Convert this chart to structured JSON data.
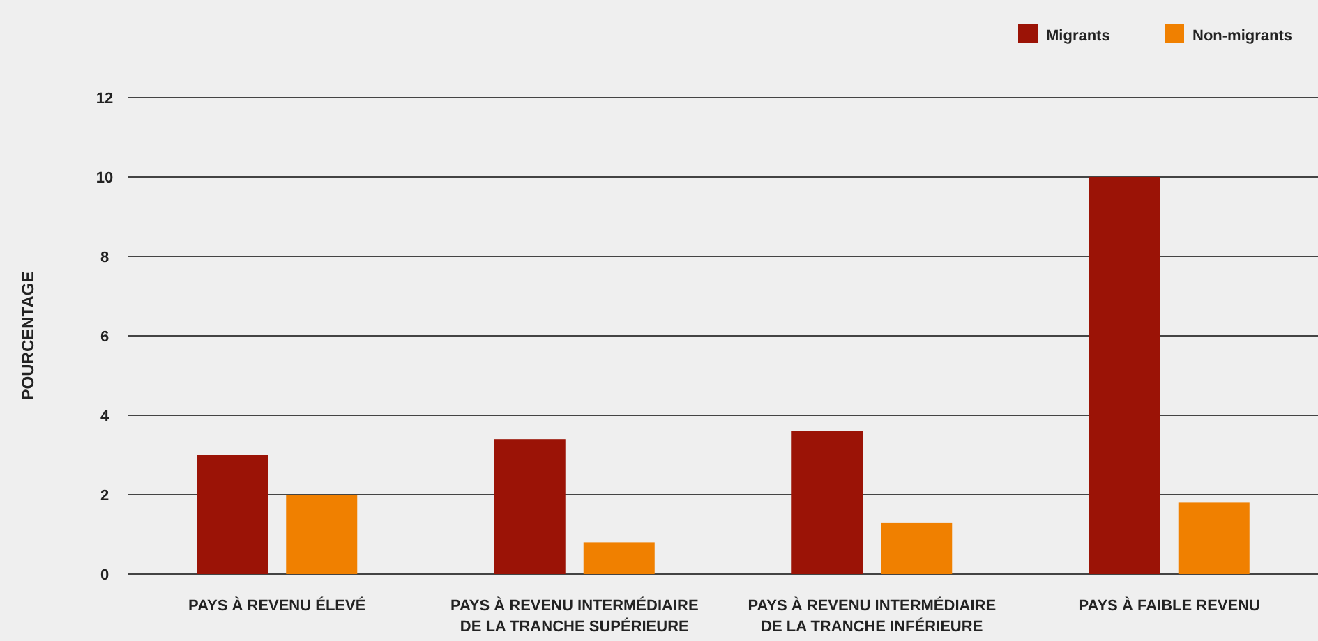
{
  "chart_data": {
    "type": "bar",
    "ylabel": "POURCENTAGE",
    "categories": [
      "PAYS À REVENU ÉLEVÉ",
      "PAYS À REVENU INTERMÉDIAIRE DE LA TRANCHE SUPÉRIEURE",
      "PAYS À REVENU INTERMÉDIAIRE DE LA TRANCHE INFÉRIEURE",
      "PAYS À FAIBLE REVENU"
    ],
    "series": [
      {
        "name": "Migrants",
        "color": "#9b1306",
        "values": [
          3.0,
          3.4,
          3.6,
          10.0
        ]
      },
      {
        "name": "Non-migrants",
        "color": "#f08000",
        "values": [
          2.0,
          0.8,
          1.3,
          1.8
        ]
      }
    ],
    "ylim": [
      0,
      12
    ],
    "yticks": [
      0,
      2,
      4,
      6,
      8,
      10,
      12
    ],
    "grid": "y",
    "legend": "top right"
  }
}
